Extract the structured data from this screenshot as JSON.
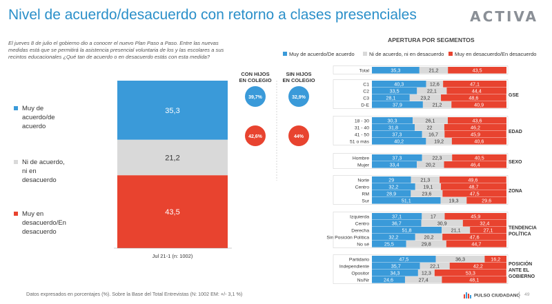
{
  "header": {
    "title": "Nivel de acuerdo/desacuerdo con retorno a clases presenciales",
    "logo": "ACTIVA"
  },
  "intro": "El jueves 8 de julio el gobierno dio a conocer el nuevo Plan Paso a Paso. Entre las nuevas medidas está que se permitirá la asistencia presencial voluntaria de los y las escolares a sus recintos educacionales ¿Qué tan de acuerdo o en desacuerdo estás con esta medida?",
  "footer": {
    "note": "Datos expresados en porcentajes (%). Sobre la Base del Total Entrevistas (N: 1002  EM: +/- 3,1 %)",
    "brand": "PULSO CIUDADANO",
    "page": "49"
  },
  "colors": {
    "agree": "#3a9ad9",
    "neutral": "#d9d9d9",
    "disagree": "#e8432f"
  },
  "chart_data": [
    {
      "type": "bar",
      "categories": [
        "Jul 21-1 (n: 1002)"
      ],
      "series": [
        {
          "name": "Muy de acuerdo/de acuerdo",
          "values": [
            35.3
          ],
          "labels": [
            "35,3"
          ]
        },
        {
          "name": "Ni de acuerdo, ni en desacuerdo",
          "values": [
            21.2
          ],
          "labels": [
            "21,2"
          ]
        },
        {
          "name": "Muy en desacuerdo/En desacuerdo",
          "values": [
            43.5
          ],
          "labels": [
            "43,5"
          ]
        }
      ],
      "ylim": [
        0,
        100
      ]
    },
    {
      "type": "table",
      "columns": [
        "CON HIJOS EN COLEGIO",
        "SIN HIJOS EN COLEGIO"
      ],
      "rows": [
        {
          "series": "agree",
          "values": [
            "39,7%",
            "32,9%"
          ]
        },
        {
          "series": "disagree",
          "values": [
            "42,6%",
            "44%"
          ]
        }
      ]
    },
    {
      "type": "bar",
      "orientation": "horizontal",
      "stacked": true,
      "title": "APERTURA POR SEGMENTOS",
      "legend": [
        "Muy de acuerdo/De acuerdo",
        "Ni de acuerdo, ni en desacuerdo",
        "Muy en desacuerdo/En desacuerdo"
      ],
      "legend_position": "top",
      "xlim": [
        0,
        100
      ],
      "groups": [
        {
          "name": "",
          "rows": [
            {
              "label": "Total",
              "values": [
                35.3,
                21.2,
                43.5
              ],
              "labels": [
                "35,3",
                "21,2",
                "43,5"
              ]
            }
          ]
        },
        {
          "name": "GSE",
          "rows": [
            {
              "label": "C1",
              "values": [
                40.3,
                12.6,
                47.1
              ],
              "labels": [
                "40,3",
                "12,6",
                "47,1"
              ]
            },
            {
              "label": "C2",
              "values": [
                33.5,
                22.1,
                44.4
              ],
              "labels": [
                "33,5",
                "22,1",
                "44,4"
              ]
            },
            {
              "label": "C3",
              "values": [
                28.1,
                23.2,
                48.6
              ],
              "labels": [
                "28,1",
                "23,2",
                "48,6"
              ]
            },
            {
              "label": "D-E",
              "values": [
                37.9,
                21.2,
                40.9
              ],
              "labels": [
                "37,9",
                "21,2",
                "40,9"
              ]
            }
          ]
        },
        {
          "name": "EDAD",
          "rows": [
            {
              "label": "18 - 30",
              "values": [
                30.3,
                26.1,
                43.6
              ],
              "labels": [
                "30,3",
                "26,1",
                "43,6"
              ]
            },
            {
              "label": "31 - 40",
              "values": [
                31.8,
                22,
                46.2
              ],
              "labels": [
                "31,8",
                "22",
                "46,2"
              ]
            },
            {
              "label": "41 - 50",
              "values": [
                37.3,
                16.7,
                45.9
              ],
              "labels": [
                "37,3",
                "16,7",
                "45,9"
              ]
            },
            {
              "label": "51 o más",
              "values": [
                40.2,
                19.2,
                40.6
              ],
              "labels": [
                "40,2",
                "19,2",
                "40,6"
              ]
            }
          ]
        },
        {
          "name": "SEXO",
          "rows": [
            {
              "label": "Hombre",
              "values": [
                37.3,
                22.3,
                40.5
              ],
              "labels": [
                "37,3",
                "22,3",
                "40,5"
              ]
            },
            {
              "label": "Mujer",
              "values": [
                33.4,
                20.2,
                46.4
              ],
              "labels": [
                "33,4",
                "20,2",
                "46,4"
              ]
            }
          ]
        },
        {
          "name": "ZONA",
          "rows": [
            {
              "label": "Norte",
              "values": [
                29,
                21.3,
                49.6
              ],
              "labels": [
                "29",
                "21,3",
                "49,6"
              ]
            },
            {
              "label": "Centro",
              "values": [
                32.2,
                19.1,
                48.7
              ],
              "labels": [
                "32,2",
                "19,1",
                "48,7"
              ]
            },
            {
              "label": "RM",
              "values": [
                28.9,
                23.6,
                47.5
              ],
              "labels": [
                "28,9",
                "23,6",
                "47,5"
              ]
            },
            {
              "label": "Sur",
              "values": [
                51.1,
                19.3,
                29.6
              ],
              "labels": [
                "51,1",
                "19,3",
                "29,6"
              ]
            }
          ]
        },
        {
          "name": "TENDENCIA POLÍTICA",
          "rows": [
            {
              "label": "Izquierda",
              "values": [
                37.1,
                17,
                45.9
              ],
              "labels": [
                "37,1",
                "17",
                "45,9"
              ]
            },
            {
              "label": "Centro",
              "values": [
                36.7,
                30.9,
                32.4
              ],
              "labels": [
                "36,7",
                "30,9",
                "32,4"
              ]
            },
            {
              "label": "Derecha",
              "values": [
                51.8,
                21.1,
                27.1
              ],
              "labels": [
                "51,8",
                "21,1",
                "27,1"
              ]
            },
            {
              "label": "Sin Posición Política",
              "values": [
                32.2,
                20.2,
                47.6
              ],
              "labels": [
                "32,2",
                "20,2",
                "47,6"
              ]
            },
            {
              "label": "No sé",
              "values": [
                25.5,
                29.8,
                44.7
              ],
              "labels": [
                "25,5",
                "29,8",
                "44,7"
              ]
            }
          ]
        },
        {
          "name": "POSICIÓN ANTE EL GOBIERNO",
          "rows": [
            {
              "label": "Partidario",
              "values": [
                47.5,
                36.3,
                16.2
              ],
              "labels": [
                "47,5",
                "36,3",
                "16,2"
              ]
            },
            {
              "label": "Independiente",
              "values": [
                35.7,
                22.1,
                42.2
              ],
              "labels": [
                "35,7",
                "22,1",
                "42,2"
              ]
            },
            {
              "label": "Opositor",
              "values": [
                34.3,
                12.3,
                53.3
              ],
              "labels": [
                "34,3",
                "12,3",
                "53,3"
              ]
            },
            {
              "label": "Ns/Nr",
              "values": [
                24.6,
                27.4,
                48.1
              ],
              "labels": [
                "24,6",
                "27,4",
                "48,1"
              ]
            }
          ]
        }
      ]
    }
  ]
}
